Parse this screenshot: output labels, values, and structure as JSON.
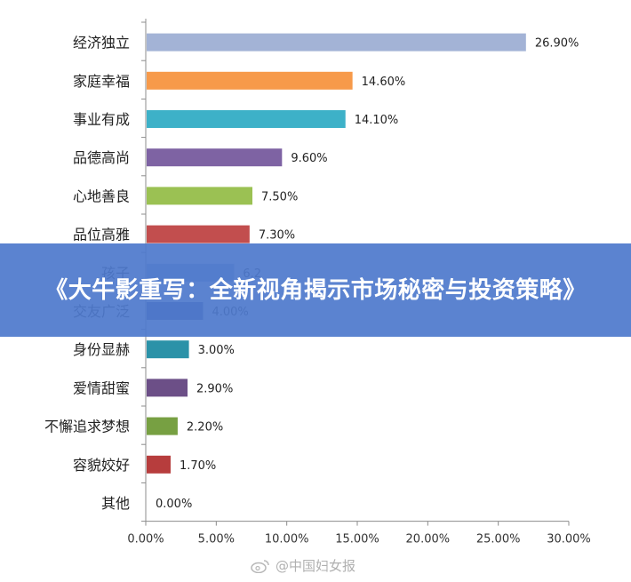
{
  "chart_data": {
    "type": "bar",
    "orientation": "horizontal",
    "categories": [
      "经济独立",
      "家庭幸福",
      "事业有成",
      "品德高尚",
      "心地善良",
      "品位高雅",
      "孩子",
      "交友广泛",
      "身份显赫",
      "爱情甜蜜",
      "不懈追求梦想",
      "容貌姣好",
      "其他"
    ],
    "values": [
      26.9,
      14.6,
      14.1,
      9.6,
      7.5,
      7.3,
      6.2,
      4.0,
      3.0,
      2.9,
      2.2,
      1.7,
      0.0
    ],
    "value_labels": [
      "26.90%",
      "14.60%",
      "14.10%",
      "9.60%",
      "7.50%",
      "7.30%",
      "6.2",
      "4.00%",
      "3.00%",
      "2.90%",
      "2.20%",
      "1.70%",
      "0.00%"
    ],
    "colors": [
      "#a3b3d6",
      "#f79a4a",
      "#3db1c8",
      "#7e63a3",
      "#9bc153",
      "#c24e4e",
      "#8aa4d4",
      "#4a5d95",
      "#2b92a8",
      "#6c4f87",
      "#77a042",
      "#b73d3d",
      "#aaaaaa"
    ],
    "xlim": [
      0,
      30
    ],
    "x_ticks": [
      0,
      5,
      10,
      15,
      20,
      25,
      30
    ],
    "x_tick_labels": [
      "0.00%",
      "5.00%",
      "10.00%",
      "15.00%",
      "20.00%",
      "25.00%",
      "30.00%"
    ],
    "grid": false,
    "legend": "none"
  },
  "banner": {
    "text": "《大牛影重写：全新视角揭示市场秘密与投资策略》"
  },
  "watermark": {
    "text": "@中国妇女报",
    "icon": "weibo-icon"
  }
}
